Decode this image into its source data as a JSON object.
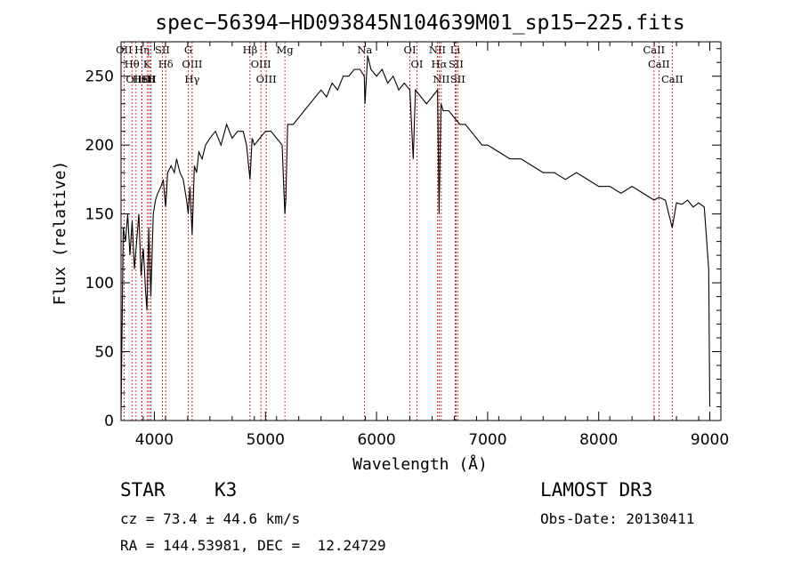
{
  "chart_data": {
    "type": "line",
    "title": "spec−56394−HD093845N104639M01_sp15−225.fits",
    "xlabel": "Wavelength (Å)",
    "ylabel": "Flux (relative)",
    "xlim": [
      3700,
      9100
    ],
    "ylim": [
      0,
      275
    ],
    "xticks": [
      4000,
      5000,
      6000,
      7000,
      8000,
      9000
    ],
    "yticks": [
      0,
      50,
      100,
      150,
      200,
      250
    ],
    "grid": false,
    "line_color": "#000000",
    "marker_color": "#cc0000",
    "spectrum": {
      "x": [
        3700,
        3720,
        3740,
        3760,
        3780,
        3800,
        3820,
        3840,
        3860,
        3880,
        3900,
        3920,
        3933,
        3950,
        3968,
        3990,
        4010,
        4030,
        4060,
        4080,
        4101,
        4120,
        4150,
        4180,
        4200,
        4230,
        4260,
        4290,
        4305,
        4320,
        4340,
        4360,
        4380,
        4400,
        4430,
        4460,
        4500,
        4550,
        4600,
        4650,
        4700,
        4750,
        4800,
        4830,
        4861,
        4880,
        4900,
        4950,
        5000,
        5050,
        5100,
        5150,
        5167,
        5175,
        5183,
        5200,
        5250,
        5300,
        5350,
        5400,
        5450,
        5500,
        5550,
        5600,
        5650,
        5700,
        5750,
        5800,
        5850,
        5890,
        5896,
        5920,
        5950,
        6000,
        6050,
        6100,
        6150,
        6200,
        6250,
        6300,
        6330,
        6350,
        6400,
        6450,
        6500,
        6550,
        6563,
        6580,
        6600,
        6650,
        6700,
        6750,
        6800,
        6850,
        6900,
        6950,
        7000,
        7100,
        7200,
        7300,
        7400,
        7500,
        7600,
        7700,
        7800,
        7900,
        8000,
        8100,
        8200,
        8300,
        8400,
        8498,
        8542,
        8600,
        8662,
        8700,
        8750,
        8800,
        8850,
        8900,
        8950,
        8990,
        9000
      ],
      "y": [
        5,
        140,
        130,
        150,
        120,
        145,
        110,
        130,
        150,
        105,
        125,
        95,
        80,
        140,
        90,
        150,
        160,
        165,
        170,
        175,
        155,
        180,
        185,
        180,
        190,
        180,
        175,
        160,
        150,
        170,
        135,
        185,
        180,
        195,
        190,
        200,
        205,
        210,
        200,
        215,
        205,
        210,
        210,
        200,
        175,
        205,
        200,
        205,
        210,
        210,
        205,
        200,
        165,
        150,
        160,
        215,
        215,
        220,
        225,
        230,
        235,
        240,
        235,
        245,
        240,
        250,
        250,
        255,
        255,
        250,
        230,
        265,
        255,
        250,
        255,
        245,
        250,
        240,
        245,
        240,
        190,
        240,
        235,
        230,
        235,
        240,
        150,
        230,
        225,
        225,
        220,
        215,
        215,
        210,
        205,
        200,
        200,
        195,
        190,
        190,
        185,
        180,
        180,
        175,
        180,
        175,
        170,
        170,
        165,
        170,
        165,
        160,
        162,
        160,
        140,
        158,
        157,
        160,
        155,
        158,
        155,
        110,
        10
      ]
    },
    "lines": [
      {
        "label": "OII",
        "wl": 3727
      },
      {
        "label": "Hθ",
        "wl": 3798
      },
      {
        "label": "OIII",
        "wl": 3835
      },
      {
        "label": "HeI",
        "wl": 3889
      },
      {
        "label": "Hη",
        "wl": 3889
      },
      {
        "label": "K",
        "wl": 3934
      },
      {
        "label": "SII",
        "wl": 3950
      },
      {
        "label": "H",
        "wl": 3969
      },
      {
        "label": "Hδ",
        "wl": 4102
      },
      {
        "label": "SII",
        "wl": 4072
      },
      {
        "label": "G",
        "wl": 4305
      },
      {
        "label": "OIII",
        "wl": 4340
      },
      {
        "label": "Hγ",
        "wl": 4340
      },
      {
        "label": "Hβ",
        "wl": 4861
      },
      {
        "label": "OIII",
        "wl": 4959
      },
      {
        "label": "OIII",
        "wl": 5007
      },
      {
        "label": "Mg",
        "wl": 5175
      },
      {
        "label": "Na",
        "wl": 5893
      },
      {
        "label": "OI",
        "wl": 6300
      },
      {
        "label": "OI",
        "wl": 6364
      },
      {
        "label": "NII",
        "wl": 6548
      },
      {
        "label": "Hα",
        "wl": 6563
      },
      {
        "label": "NII",
        "wl": 6583
      },
      {
        "label": "Li",
        "wl": 6708
      },
      {
        "label": "SII",
        "wl": 6716
      },
      {
        "label": "SII",
        "wl": 6731
      },
      {
        "label": "CaII",
        "wl": 8498
      },
      {
        "label": "CaII",
        "wl": 8542
      },
      {
        "label": "CaII",
        "wl": 8662
      }
    ]
  },
  "info": {
    "object_class": "STAR",
    "subclass": "K3",
    "survey": "LAMOST DR3",
    "velocity": "cz = 73.4 ± 44.6 km/s",
    "obs_date": "Obs-Date: 20130411",
    "coords": "RA = 144.53981, DEC =  12.24729"
  }
}
